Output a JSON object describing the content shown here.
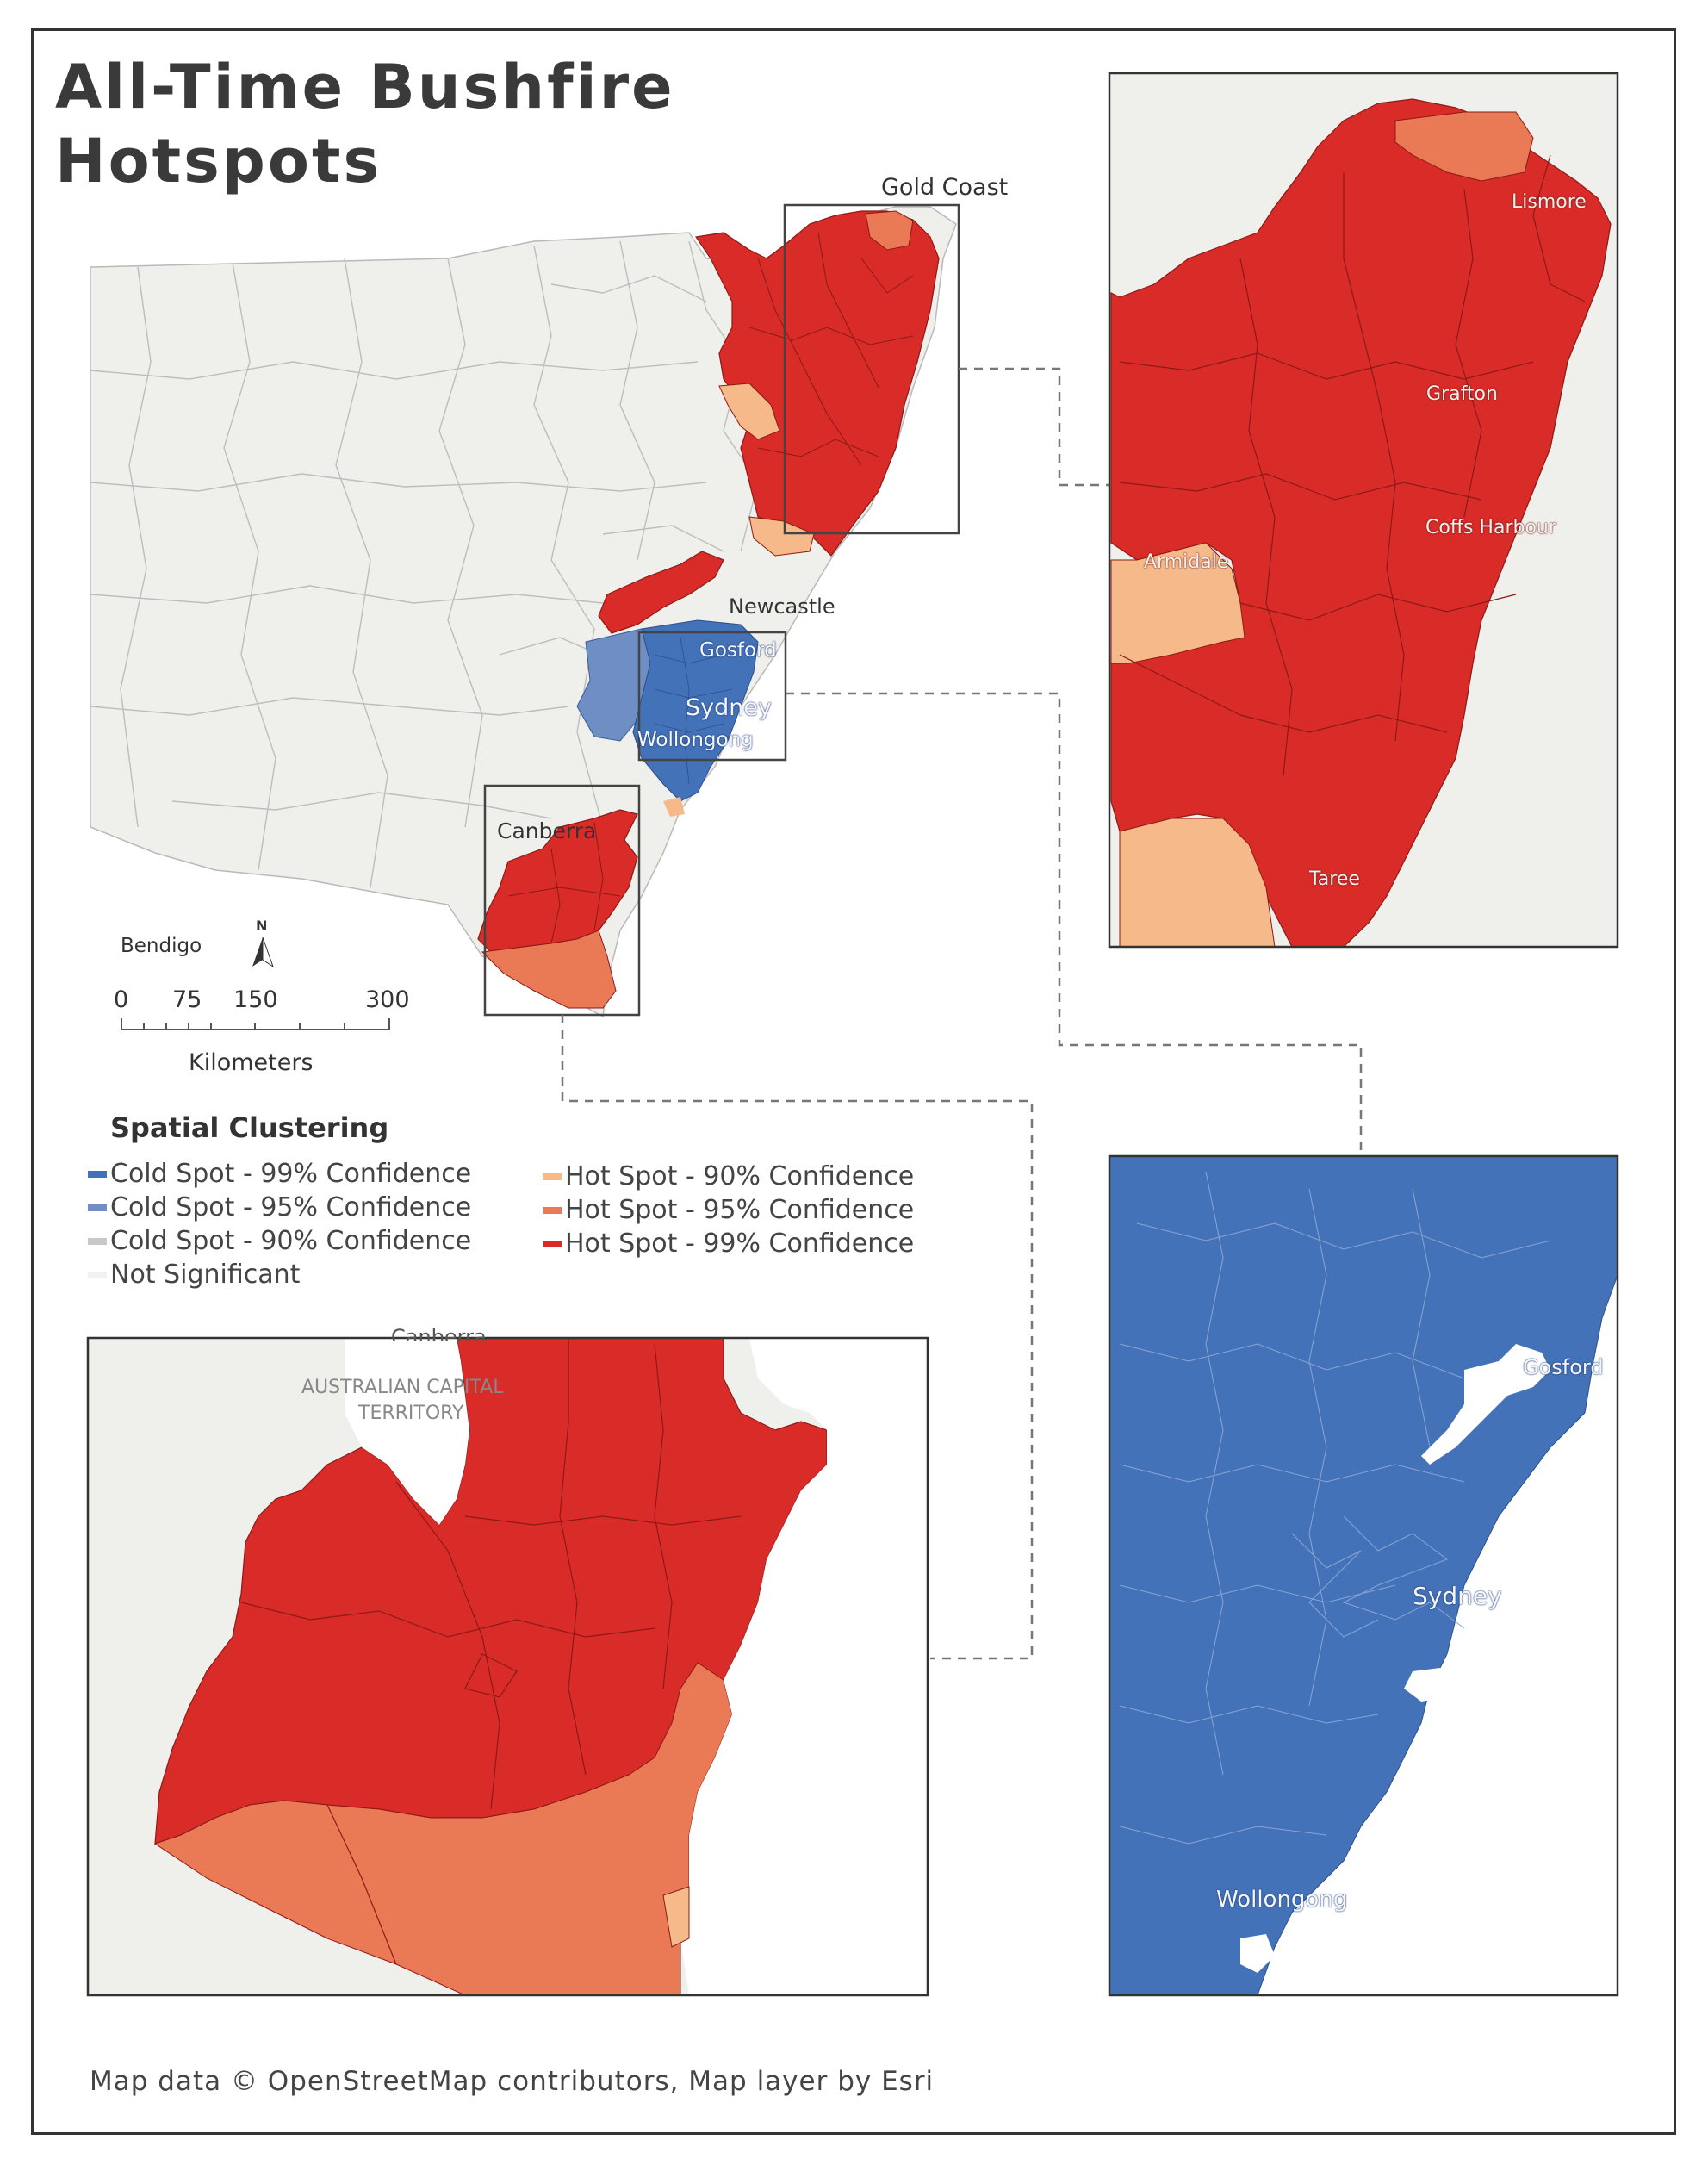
{
  "title": {
    "line1": "All-Time Bushfire",
    "line2": "Hotspots"
  },
  "colors": {
    "cold99": "#4472b8",
    "cold95": "#6f8fc4",
    "cold90": "#c8c8c8",
    "not_sig": "#efefeb",
    "hot90": "#f5b98a",
    "hot95": "#ea7a55",
    "hot99": "#d92b27"
  },
  "main_map": {
    "places": {
      "gold_coast": "Gold Coast",
      "newcastle": "Newcastle",
      "gosford": "Gosford",
      "sydney": "Sydney",
      "wollongong": "Wollongong",
      "canberra": "Canberra",
      "bendigo": "Bendigo"
    },
    "north_arrow": "N"
  },
  "scale_bar": {
    "ticks": [
      "0",
      "75",
      "150",
      "300"
    ],
    "unit": "Kilometers"
  },
  "legend": {
    "title": "Spatial Clustering",
    "items": [
      {
        "label": "Cold Spot - 99% Confidence",
        "color": "#4472b8"
      },
      {
        "label": "Cold Spot - 95% Confidence",
        "color": "#6f8fc4"
      },
      {
        "label": "Cold Spot - 90% Confidence",
        "color": "#c8c8c8"
      },
      {
        "label": "Not Significant",
        "color": "#efefeb"
      },
      {
        "label": "Hot Spot - 90% Confidence",
        "color": "#f5b98a"
      },
      {
        "label": "Hot Spot - 95% Confidence",
        "color": "#ea7a55"
      },
      {
        "label": "Hot Spot - 99% Confidence",
        "color": "#d92b27"
      }
    ]
  },
  "inset_north": {
    "places": {
      "lismore": "Lismore",
      "grafton": "Grafton",
      "coffs_harbour": "Coffs Harbour",
      "armidale": "Armidale",
      "taree": "Taree"
    }
  },
  "inset_sydney": {
    "places": {
      "gosford": "Gosford",
      "sydney": "Sydney",
      "wollongong": "Wollongong"
    }
  },
  "inset_south": {
    "places": {
      "canberra_partial": "Canberra",
      "act_line1": "AUSTRALIAN CAPITAL",
      "act_line2": "TERRITORY"
    }
  },
  "credit": "Map data © OpenStreetMap contributors, Map layer by Esri"
}
